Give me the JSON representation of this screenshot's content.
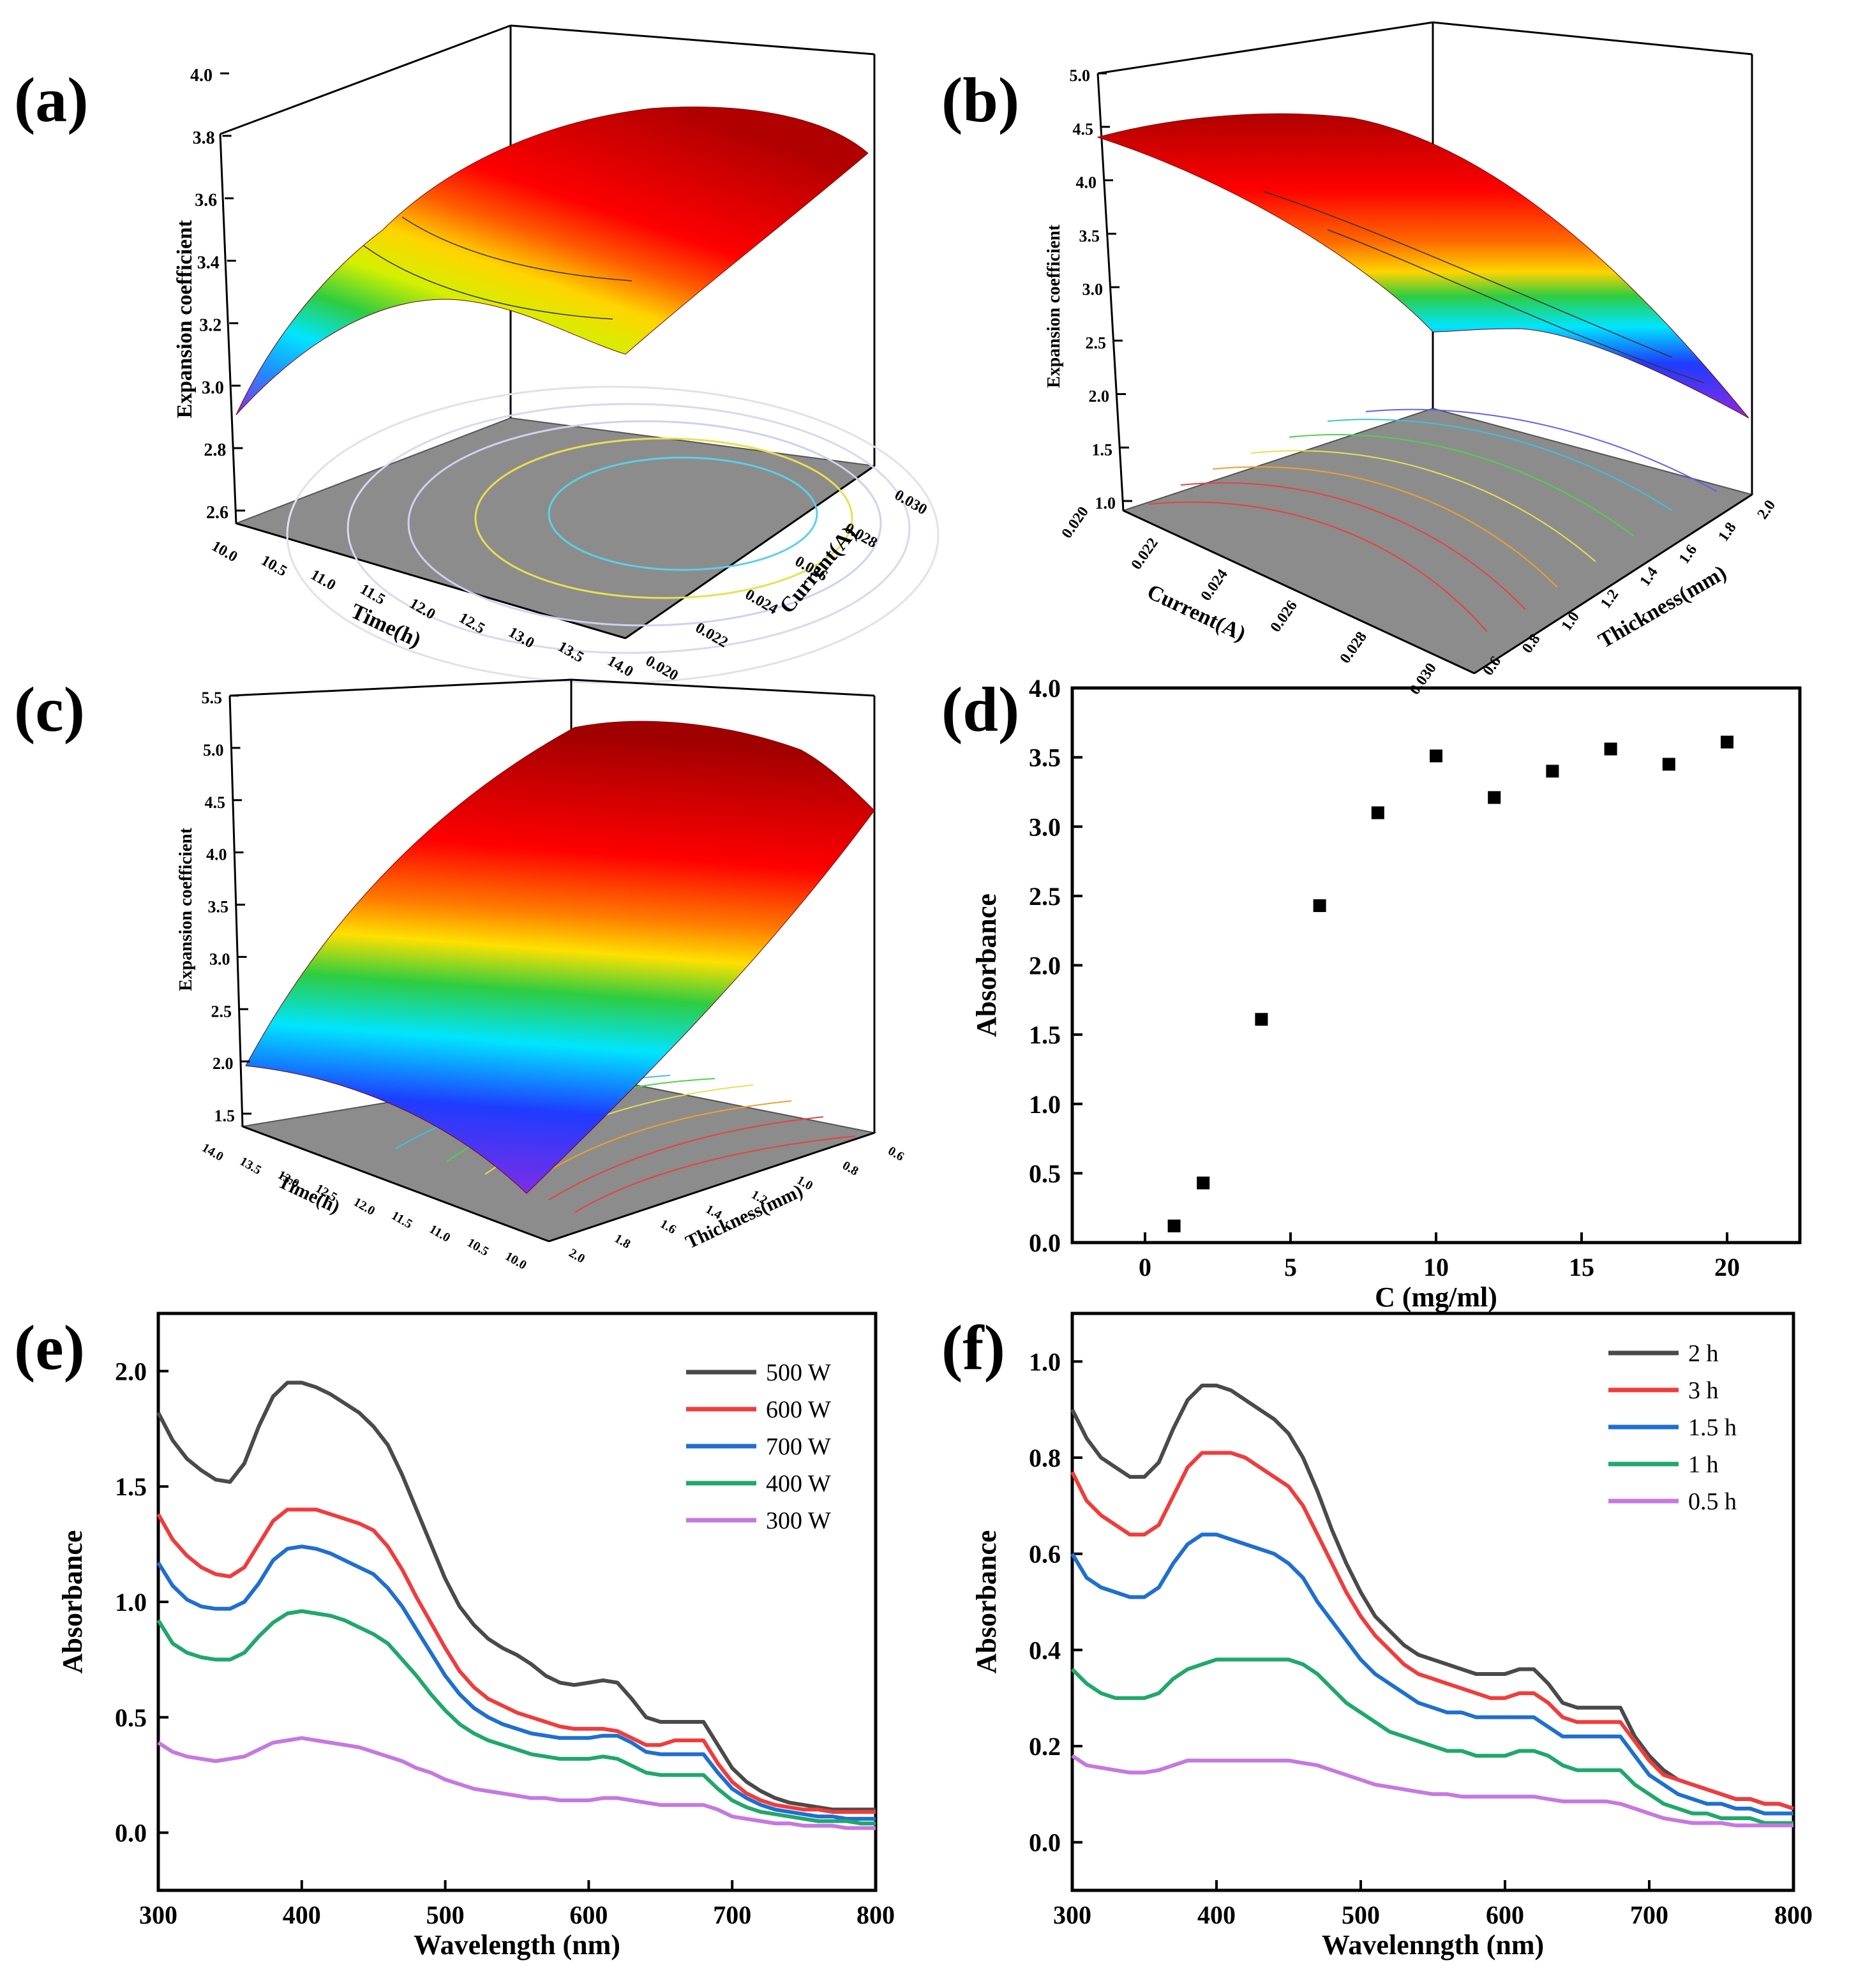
{
  "chart_data": [
    {
      "id": "a",
      "type": "surface3d",
      "panel_label": "(a)",
      "zlabel": "Expansion coefficient",
      "xlabel": "Time(h)",
      "ylabel": "Current(A)",
      "z_ticks": [
        "2.6",
        "2.8",
        "3.0",
        "3.2",
        "3.4",
        "3.6",
        "3.8",
        "4.0"
      ],
      "x_ticks": [
        "10.0",
        "10.5",
        "11.0",
        "11.5",
        "12.0",
        "12.5",
        "13.0",
        "13.5",
        "14.0"
      ],
      "y_ticks": [
        "0.020",
        "0.022",
        "0.024",
        "0.026",
        "0.028",
        "0.030"
      ],
      "zlim": [
        2.6,
        4.0
      ]
    },
    {
      "id": "b",
      "type": "surface3d",
      "panel_label": "(b)",
      "zlabel": "Expansion coefficient",
      "xlabel": "Current(A)",
      "ylabel": "Thickness(mm)",
      "z_ticks": [
        "1.0",
        "1.5",
        "2.0",
        "2.5",
        "3.0",
        "3.5",
        "4.0",
        "4.5",
        "5.0"
      ],
      "x_ticks": [
        "0.020",
        "0.022",
        "0.024",
        "0.026",
        "0.028",
        "0.030"
      ],
      "y_ticks": [
        "0.6",
        "0.8",
        "1.0",
        "1.2",
        "1.4",
        "1.6",
        "1.8",
        "2.0"
      ],
      "zlim": [
        1.0,
        5.0
      ]
    },
    {
      "id": "c",
      "type": "surface3d",
      "panel_label": "(c)",
      "zlabel": "Expansion coefficient",
      "xlabel": "Time(h)",
      "ylabel": "Thickness(mm)",
      "z_ticks": [
        "1.5",
        "2.0",
        "2.5",
        "3.0",
        "3.5",
        "4.0",
        "4.5",
        "5.0",
        "5.5"
      ],
      "x_ticks": [
        "14.0",
        "13.5",
        "13.0",
        "12.5",
        "12.0",
        "11.5",
        "11.0",
        "10.5",
        "10.0"
      ],
      "y_ticks": [
        "2.0",
        "1.8",
        "1.6",
        "1.4",
        "1.2",
        "1.0",
        "0.8",
        "0.6"
      ],
      "zlim": [
        1.5,
        5.5
      ]
    },
    {
      "id": "d",
      "type": "scatter",
      "panel_label": "(d)",
      "xlabel": "C (mg/ml)",
      "ylabel": "Absorbance",
      "xlim": [
        -2.5,
        22.5
      ],
      "ylim": [
        0.0,
        4.0
      ],
      "x_ticks": [
        0,
        5,
        10,
        15,
        20
      ],
      "y_ticks": [
        0.0,
        0.5,
        1.0,
        1.5,
        2.0,
        2.5,
        3.0,
        3.5,
        4.0
      ],
      "x": [
        1,
        2,
        4,
        6,
        8,
        10,
        12,
        14,
        16,
        18,
        20
      ],
      "y": [
        0.12,
        0.43,
        1.61,
        2.43,
        3.1,
        3.51,
        3.21,
        3.4,
        3.56,
        3.45,
        3.61
      ]
    },
    {
      "id": "e",
      "type": "line",
      "panel_label": "(e)",
      "xlabel": "Wavelength (nm)",
      "ylabel": "Absorbance",
      "xlim": [
        300,
        800
      ],
      "ylim": [
        -0.25,
        2.25
      ],
      "x_ticks": [
        300,
        400,
        500,
        600,
        700,
        800
      ],
      "y_ticks": [
        0.0,
        0.5,
        1.0,
        1.5,
        2.0
      ],
      "x": [
        300,
        310,
        320,
        330,
        340,
        350,
        360,
        370,
        380,
        390,
        400,
        410,
        420,
        430,
        440,
        450,
        460,
        470,
        480,
        490,
        500,
        510,
        520,
        530,
        540,
        550,
        560,
        570,
        580,
        590,
        600,
        610,
        620,
        630,
        640,
        650,
        660,
        670,
        680,
        690,
        700,
        710,
        720,
        730,
        740,
        750,
        760,
        770,
        780,
        790,
        800
      ],
      "series": [
        {
          "name": "500 W",
          "color": "#4a4a4a",
          "values": [
            1.82,
            1.7,
            1.62,
            1.57,
            1.53,
            1.52,
            1.6,
            1.76,
            1.89,
            1.95,
            1.95,
            1.93,
            1.9,
            1.86,
            1.82,
            1.76,
            1.68,
            1.55,
            1.4,
            1.25,
            1.1,
            0.98,
            0.9,
            0.84,
            0.8,
            0.77,
            0.73,
            0.68,
            0.65,
            0.64,
            0.65,
            0.66,
            0.65,
            0.58,
            0.5,
            0.48,
            0.48,
            0.48,
            0.48,
            0.38,
            0.28,
            0.22,
            0.18,
            0.15,
            0.13,
            0.12,
            0.11,
            0.1,
            0.1,
            0.1,
            0.1
          ]
        },
        {
          "name": "600 W",
          "color": "#f03c3c",
          "values": [
            1.38,
            1.27,
            1.2,
            1.15,
            1.12,
            1.11,
            1.15,
            1.25,
            1.35,
            1.4,
            1.4,
            1.4,
            1.38,
            1.36,
            1.34,
            1.31,
            1.24,
            1.14,
            1.02,
            0.91,
            0.8,
            0.7,
            0.63,
            0.58,
            0.55,
            0.52,
            0.5,
            0.48,
            0.46,
            0.45,
            0.45,
            0.45,
            0.44,
            0.41,
            0.38,
            0.38,
            0.4,
            0.4,
            0.4,
            0.3,
            0.22,
            0.17,
            0.14,
            0.12,
            0.11,
            0.1,
            0.1,
            0.09,
            0.09,
            0.09,
            0.09
          ]
        },
        {
          "name": "700 W",
          "color": "#1e6fd0",
          "values": [
            1.17,
            1.07,
            1.01,
            0.98,
            0.97,
            0.97,
            1.0,
            1.08,
            1.18,
            1.23,
            1.24,
            1.23,
            1.21,
            1.18,
            1.15,
            1.12,
            1.06,
            0.98,
            0.88,
            0.78,
            0.68,
            0.6,
            0.54,
            0.5,
            0.47,
            0.45,
            0.43,
            0.42,
            0.41,
            0.41,
            0.41,
            0.42,
            0.42,
            0.39,
            0.35,
            0.34,
            0.34,
            0.34,
            0.34,
            0.26,
            0.19,
            0.15,
            0.12,
            0.1,
            0.09,
            0.08,
            0.07,
            0.07,
            0.06,
            0.06,
            0.06
          ]
        },
        {
          "name": "400 W",
          "color": "#1fa86c",
          "values": [
            0.92,
            0.82,
            0.78,
            0.76,
            0.75,
            0.75,
            0.78,
            0.85,
            0.91,
            0.95,
            0.96,
            0.95,
            0.94,
            0.92,
            0.89,
            0.86,
            0.82,
            0.75,
            0.68,
            0.6,
            0.53,
            0.47,
            0.43,
            0.4,
            0.38,
            0.36,
            0.34,
            0.33,
            0.32,
            0.32,
            0.32,
            0.33,
            0.32,
            0.29,
            0.26,
            0.25,
            0.25,
            0.25,
            0.25,
            0.19,
            0.14,
            0.11,
            0.09,
            0.08,
            0.07,
            0.06,
            0.05,
            0.05,
            0.05,
            0.04,
            0.04
          ]
        },
        {
          "name": "300 W",
          "color": "#c678e0",
          "values": [
            0.39,
            0.35,
            0.33,
            0.32,
            0.31,
            0.32,
            0.33,
            0.36,
            0.39,
            0.4,
            0.41,
            0.4,
            0.39,
            0.38,
            0.37,
            0.35,
            0.33,
            0.31,
            0.28,
            0.26,
            0.23,
            0.21,
            0.19,
            0.18,
            0.17,
            0.16,
            0.15,
            0.15,
            0.14,
            0.14,
            0.14,
            0.15,
            0.15,
            0.14,
            0.13,
            0.12,
            0.12,
            0.12,
            0.12,
            0.1,
            0.07,
            0.06,
            0.05,
            0.04,
            0.04,
            0.03,
            0.03,
            0.03,
            0.02,
            0.02,
            0.02
          ]
        }
      ]
    },
    {
      "id": "f",
      "type": "line",
      "panel_label": "(f)",
      "xlabel": "Wavelenngth (nm)",
      "ylabel": "Absorbance",
      "xlim": [
        300,
        800
      ],
      "ylim": [
        -0.1,
        1.1
      ],
      "x_ticks": [
        300,
        400,
        500,
        600,
        700,
        800
      ],
      "y_ticks": [
        0.0,
        0.2,
        0.4,
        0.6,
        0.8,
        1.0
      ],
      "x": [
        300,
        310,
        320,
        330,
        340,
        350,
        360,
        370,
        380,
        390,
        400,
        410,
        420,
        430,
        440,
        450,
        460,
        470,
        480,
        490,
        500,
        510,
        520,
        530,
        540,
        550,
        560,
        570,
        580,
        590,
        600,
        610,
        620,
        630,
        640,
        650,
        660,
        670,
        680,
        690,
        700,
        710,
        720,
        730,
        740,
        750,
        760,
        770,
        780,
        790,
        800
      ],
      "series": [
        {
          "name": "2 h",
          "color": "#4a4a4a",
          "values": [
            0.9,
            0.84,
            0.8,
            0.78,
            0.76,
            0.76,
            0.79,
            0.86,
            0.92,
            0.95,
            0.95,
            0.94,
            0.92,
            0.9,
            0.88,
            0.85,
            0.8,
            0.73,
            0.65,
            0.58,
            0.52,
            0.47,
            0.44,
            0.41,
            0.39,
            0.38,
            0.37,
            0.36,
            0.35,
            0.35,
            0.35,
            0.36,
            0.36,
            0.33,
            0.29,
            0.28,
            0.28,
            0.28,
            0.28,
            0.22,
            0.18,
            0.15,
            0.13,
            0.12,
            0.11,
            0.1,
            0.09,
            0.09,
            0.08,
            0.08,
            0.07
          ]
        },
        {
          "name": "3 h",
          "color": "#f03c3c",
          "values": [
            0.77,
            0.71,
            0.68,
            0.66,
            0.64,
            0.64,
            0.66,
            0.72,
            0.78,
            0.81,
            0.81,
            0.81,
            0.8,
            0.78,
            0.76,
            0.74,
            0.7,
            0.64,
            0.58,
            0.52,
            0.47,
            0.43,
            0.4,
            0.37,
            0.35,
            0.34,
            0.33,
            0.32,
            0.31,
            0.3,
            0.3,
            0.31,
            0.31,
            0.29,
            0.26,
            0.25,
            0.25,
            0.25,
            0.25,
            0.21,
            0.17,
            0.14,
            0.13,
            0.12,
            0.11,
            0.1,
            0.09,
            0.09,
            0.08,
            0.08,
            0.07
          ]
        },
        {
          "name": "1.5 h",
          "color": "#1e6fd0",
          "values": [
            0.6,
            0.55,
            0.53,
            0.52,
            0.51,
            0.51,
            0.53,
            0.58,
            0.62,
            0.64,
            0.64,
            0.63,
            0.62,
            0.61,
            0.6,
            0.58,
            0.55,
            0.5,
            0.46,
            0.42,
            0.38,
            0.35,
            0.33,
            0.31,
            0.29,
            0.28,
            0.27,
            0.27,
            0.26,
            0.26,
            0.26,
            0.26,
            0.26,
            0.24,
            0.22,
            0.22,
            0.22,
            0.22,
            0.22,
            0.18,
            0.14,
            0.12,
            0.1,
            0.09,
            0.08,
            0.08,
            0.07,
            0.07,
            0.06,
            0.06,
            0.06
          ]
        },
        {
          "name": "1 h",
          "color": "#1fa86c",
          "values": [
            0.36,
            0.33,
            0.31,
            0.3,
            0.3,
            0.3,
            0.31,
            0.34,
            0.36,
            0.37,
            0.38,
            0.38,
            0.38,
            0.38,
            0.38,
            0.38,
            0.37,
            0.35,
            0.32,
            0.29,
            0.27,
            0.25,
            0.23,
            0.22,
            0.21,
            0.2,
            0.19,
            0.19,
            0.18,
            0.18,
            0.18,
            0.19,
            0.19,
            0.18,
            0.16,
            0.15,
            0.15,
            0.15,
            0.15,
            0.12,
            0.1,
            0.08,
            0.07,
            0.06,
            0.06,
            0.05,
            0.05,
            0.05,
            0.04,
            0.04,
            0.04
          ]
        },
        {
          "name": "0.5 h",
          "color": "#c678e0",
          "values": [
            0.18,
            0.16,
            0.155,
            0.15,
            0.145,
            0.145,
            0.15,
            0.16,
            0.17,
            0.17,
            0.17,
            0.17,
            0.17,
            0.17,
            0.17,
            0.17,
            0.165,
            0.16,
            0.15,
            0.14,
            0.13,
            0.12,
            0.115,
            0.11,
            0.105,
            0.1,
            0.1,
            0.095,
            0.095,
            0.095,
            0.095,
            0.095,
            0.095,
            0.09,
            0.085,
            0.085,
            0.085,
            0.085,
            0.08,
            0.07,
            0.06,
            0.05,
            0.045,
            0.04,
            0.04,
            0.04,
            0.035,
            0.035,
            0.035,
            0.035,
            0.035
          ]
        }
      ]
    }
  ]
}
